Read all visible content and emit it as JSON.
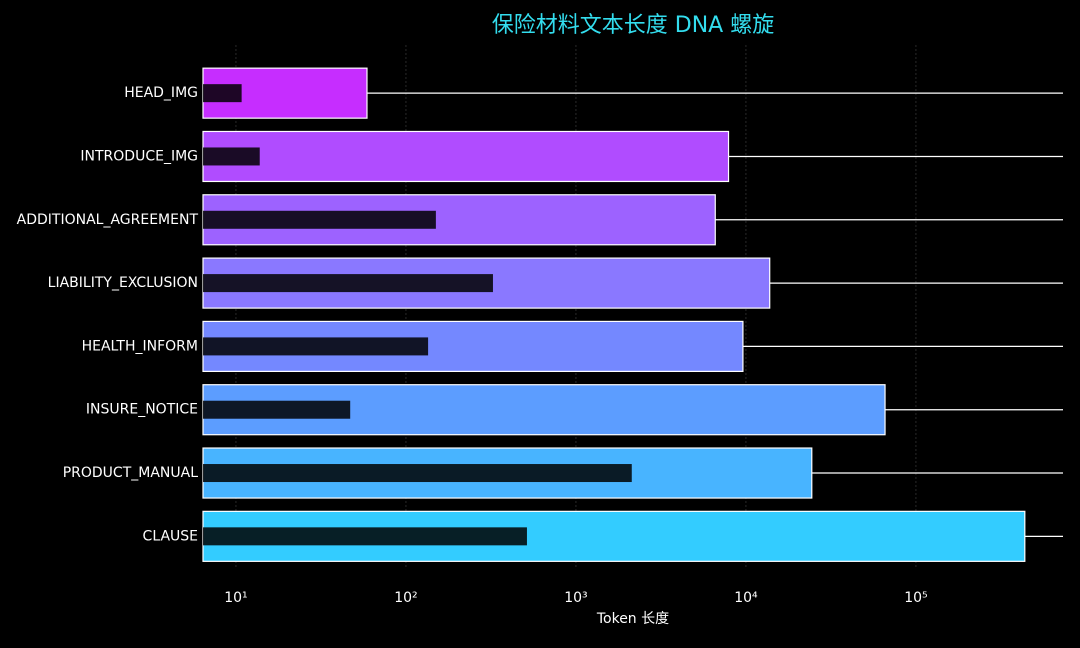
{
  "chart_data": {
    "type": "bar",
    "orientation": "horizontal",
    "title": "保险材料文本长度 DNA 螺旋",
    "x_label": "Token 长度",
    "categories": [
      "HEAD_IMG",
      "INTRODUCE_IMG",
      "ADDITIONAL_AGREEMENT",
      "LIABILITY_EXCLUSION",
      "HEALTH_INFORM",
      "INSURE_NOTICE",
      "PRODUCT_MANUAL",
      "CLAUSE"
    ],
    "series": [
      {
        "colors": [
          "#c62dff",
          "#b04cff",
          "#9d62ff",
          "#8a78ff",
          "#7488ff",
          "#5c9dff",
          "#48b4ff",
          "#33ccff"
        ],
        "values": [
          59,
          7900,
          6600,
          13800,
          9600,
          65800,
          24400,
          437000
        ]
      },
      {
        "color": "#000000",
        "opacity": 0.85,
        "values": [
          10.8,
          13.8,
          150,
          325,
          135,
          47,
          2130,
          515
        ]
      }
    ],
    "xscale": "log",
    "xlim": [
      6.4,
      733000
    ],
    "xticks": [
      {
        "value": 10,
        "label": "10¹"
      },
      {
        "value": 100,
        "label": "10²"
      },
      {
        "value": 1000,
        "label": "10³"
      },
      {
        "value": 10000,
        "label": "10⁴"
      },
      {
        "value": 100000,
        "label": "10⁵"
      }
    ],
    "grid": true,
    "title_color": "#33ddee"
  }
}
